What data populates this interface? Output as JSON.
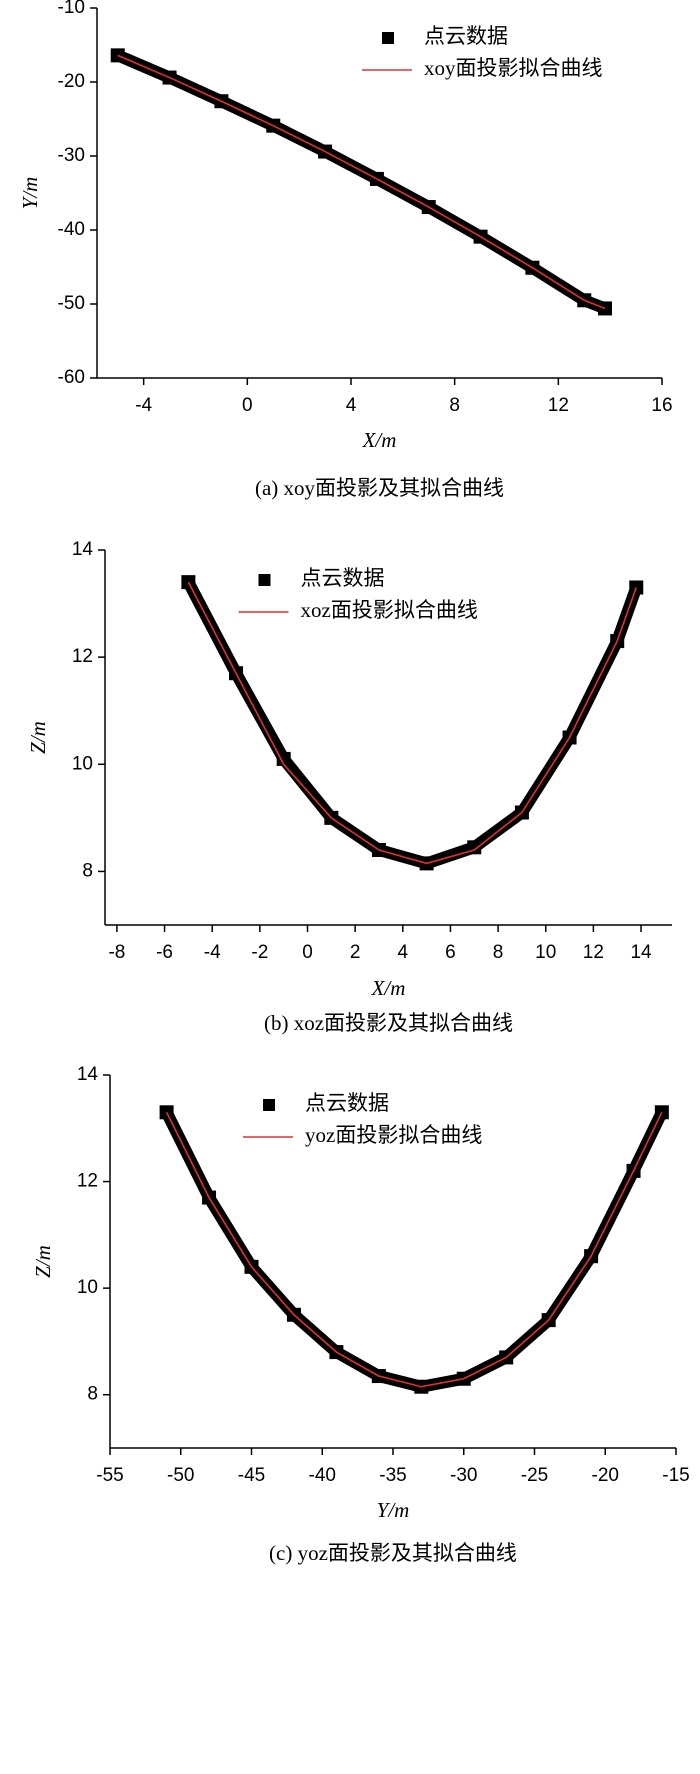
{
  "chart_data": [
    {
      "type": "scatter",
      "caption": "(a) xoy面投影及其拟合曲线",
      "xlabel": "X/m",
      "ylabel": "Y/m",
      "x": [
        -5,
        -3,
        -1,
        1,
        3,
        5,
        7,
        9,
        11,
        13,
        13.8
      ],
      "series": [
        {
          "name": "点云数据",
          "type": "scatter",
          "color": "#000000",
          "values": [
            -16.4,
            -19.4,
            -22.6,
            -25.9,
            -29.4,
            -33.1,
            -36.9,
            -40.9,
            -45.1,
            -49.5,
            -50.6
          ]
        },
        {
          "name": "xoy面投影拟合曲线",
          "type": "line",
          "color": "#e03030",
          "values": [
            -16.4,
            -19.4,
            -22.6,
            -25.9,
            -29.4,
            -33.1,
            -36.9,
            -40.9,
            -45.1,
            -49.5,
            -50.6
          ]
        }
      ],
      "xlim": [
        -5.8,
        16
      ],
      "xticks": [
        -4,
        0,
        4,
        8,
        12,
        16
      ],
      "ylim": [
        -60,
        -10
      ],
      "yticks": [
        -10,
        -20,
        -30,
        -40,
        -50,
        -60
      ],
      "legend": "upper right"
    },
    {
      "type": "scatter",
      "caption": "(b) xoz面投影及其拟合曲线",
      "xlabel": "X/m",
      "ylabel": "Z/m",
      "x": [
        -5,
        -3,
        -1,
        1,
        3,
        5,
        7,
        9,
        11,
        13,
        13.8
      ],
      "series": [
        {
          "name": "点云数据",
          "type": "scatter",
          "color": "#000000",
          "values": [
            13.4,
            11.7,
            10.1,
            9.0,
            8.4,
            8.15,
            8.45,
            9.1,
            10.5,
            12.3,
            13.3
          ]
        },
        {
          "name": "xoz面投影拟合曲线",
          "type": "line",
          "color": "#e03030",
          "values": [
            13.4,
            11.7,
            10.0,
            9.0,
            8.4,
            8.15,
            8.4,
            9.1,
            10.5,
            12.3,
            13.3
          ]
        }
      ],
      "xlim": [
        -8.5,
        15.3
      ],
      "xticks": [
        -8,
        -6,
        -4,
        -2,
        0,
        2,
        4,
        6,
        8,
        10,
        12,
        14
      ],
      "ylim": [
        7,
        14
      ],
      "yticks": [
        8,
        10,
        12,
        14
      ],
      "legend": "upper center"
    },
    {
      "type": "scatter",
      "caption": "(c) yoz面投影及其拟合曲线",
      "xlabel": "Y/m",
      "ylabel": "Z/m",
      "x": [
        -51,
        -48,
        -45,
        -42,
        -39,
        -36,
        -33,
        -30,
        -27,
        -24,
        -21,
        -18,
        -16
      ],
      "series": [
        {
          "name": "点云数据",
          "type": "scatter",
          "color": "#000000",
          "values": [
            13.3,
            11.7,
            10.4,
            9.5,
            8.8,
            8.35,
            8.15,
            8.3,
            8.7,
            9.4,
            10.6,
            12.2,
            13.3
          ]
        },
        {
          "name": "yoz面投影拟合曲线",
          "type": "line",
          "color": "#e03030",
          "values": [
            13.3,
            11.7,
            10.4,
            9.5,
            8.8,
            8.35,
            8.15,
            8.3,
            8.7,
            9.4,
            10.6,
            12.2,
            13.3
          ]
        }
      ],
      "xlim": [
        -55,
        -15
      ],
      "xticks": [
        -55,
        -50,
        -45,
        -40,
        -35,
        -30,
        -25,
        -20,
        -15
      ],
      "ylim": [
        7,
        14
      ],
      "yticks": [
        8,
        10,
        12,
        14
      ],
      "legend": "upper center"
    }
  ]
}
